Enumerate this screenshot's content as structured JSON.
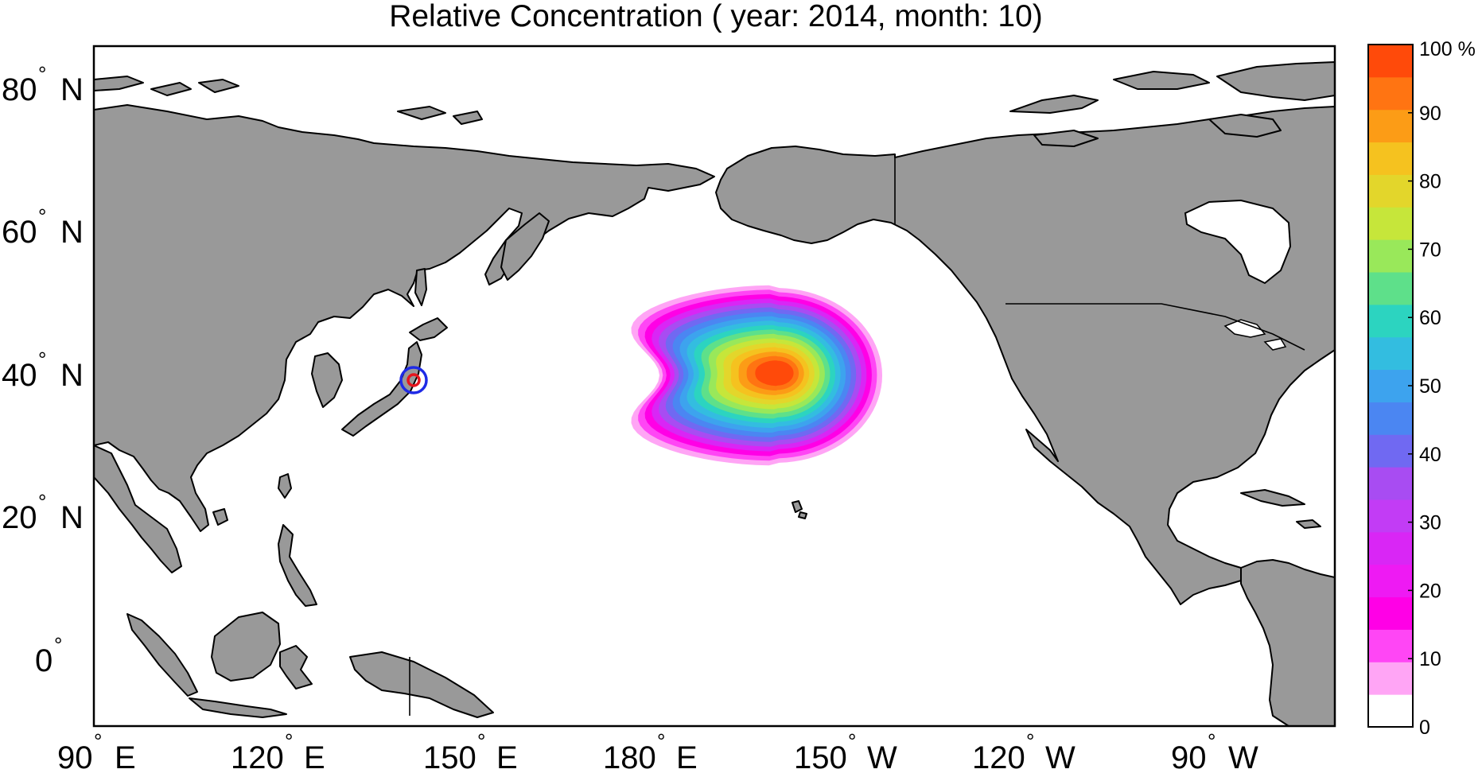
{
  "title": "Relative Concentration ( year: 2014, month: 10)",
  "lat_labels": [
    {
      "deg": "80",
      "hemi": "N"
    },
    {
      "deg": "60",
      "hemi": "N"
    },
    {
      "deg": "40",
      "hemi": "N"
    },
    {
      "deg": "20",
      "hemi": "N"
    },
    {
      "deg": "0",
      "hemi": ""
    }
  ],
  "lon_labels": [
    {
      "deg": "90",
      "hemi": "E"
    },
    {
      "deg": "120",
      "hemi": "E"
    },
    {
      "deg": "150",
      "hemi": "E"
    },
    {
      "deg": "180",
      "hemi": "E"
    },
    {
      "deg": "150",
      "hemi": "W"
    },
    {
      "deg": "120",
      "hemi": "W"
    },
    {
      "deg": "90",
      "hemi": "W"
    }
  ],
  "colorbar": {
    "top_label": "100 %",
    "tick_labels": [
      "90",
      "80",
      "70",
      "60",
      "50",
      "40",
      "30",
      "20",
      "10",
      "0"
    ],
    "colors": [
      "#ffffff",
      "#ffa5f5",
      "#ff46f5",
      "#ff00e6",
      "#ee1af3",
      "#d926f5",
      "#c23cf5",
      "#a84cf2",
      "#7069f2",
      "#4b86f2",
      "#3da3ee",
      "#33bde0",
      "#2cd4c0",
      "#5ee08a",
      "#99e85a",
      "#c6e63a",
      "#e3d62b",
      "#f5c21f",
      "#fc9c16",
      "#ff7412",
      "#ff4a0a"
    ]
  },
  "source_marker": {
    "lon": 141,
    "lat": 37.4,
    "outer_color": "#1f2be6",
    "inner_color": "#e6161e"
  },
  "plume_colors": [
    "#ffa5f5",
    "#ff46f5",
    "#ff00e6",
    "#d926f5",
    "#a84cf2",
    "#7069f2",
    "#4b86f2",
    "#3da3ee",
    "#33bde0",
    "#2cd4c0",
    "#5ee08a",
    "#99e85a",
    "#c6e63a",
    "#e3d62b",
    "#f5c21f",
    "#fc9c16",
    "#ff7412",
    "#ff4a0a"
  ]
}
